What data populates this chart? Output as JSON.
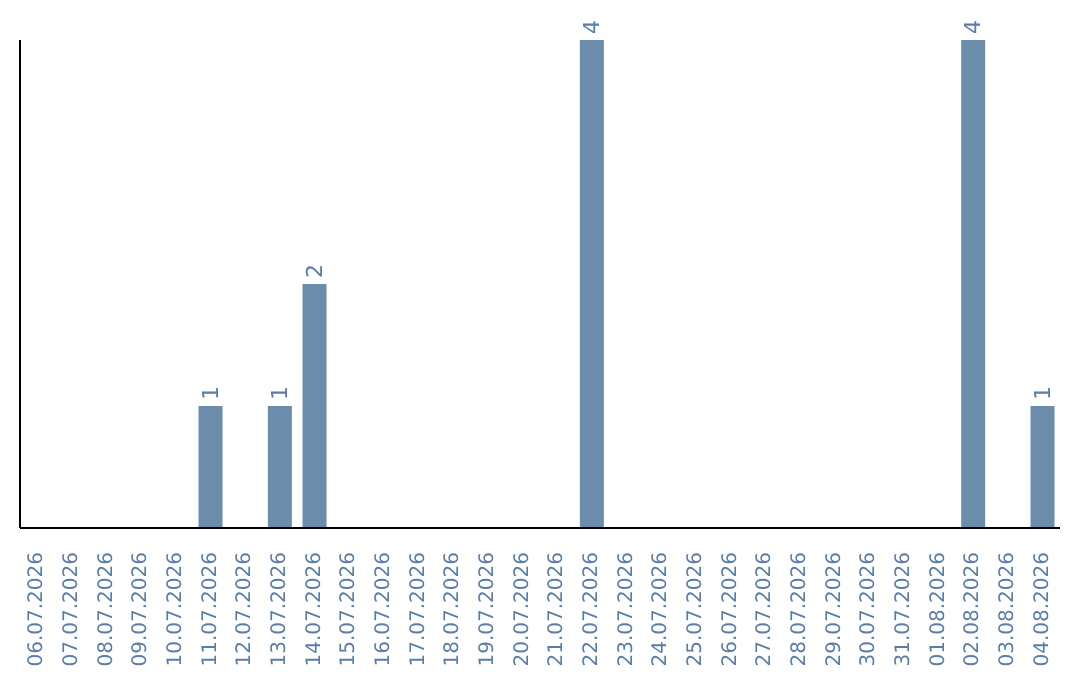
{
  "chart_data": {
    "type": "bar",
    "categories": [
      "06.07.2026",
      "07.07.2026",
      "08.07.2026",
      "09.07.2026",
      "10.07.2026",
      "11.07.2026",
      "12.07.2026",
      "13.07.2026",
      "14.07.2026",
      "15.07.2026",
      "16.07.2026",
      "17.07.2026",
      "18.07.2026",
      "19.07.2026",
      "20.07.2026",
      "21.07.2026",
      "22.07.2026",
      "23.07.2026",
      "24.07.2026",
      "25.07.2026",
      "26.07.2026",
      "27.07.2026",
      "28.07.2026",
      "29.07.2026",
      "30.07.2026",
      "31.07.2026",
      "01.08.2026",
      "02.08.2026",
      "03.08.2026",
      "04.08.2026"
    ],
    "values": [
      0,
      0,
      0,
      0,
      0,
      1,
      0,
      1,
      2,
      0,
      0,
      0,
      0,
      0,
      0,
      0,
      4,
      0,
      0,
      0,
      0,
      0,
      0,
      0,
      0,
      0,
      0,
      4,
      0,
      1
    ],
    "value_labels": [
      null,
      null,
      null,
      null,
      null,
      "1",
      null,
      "1",
      "2",
      null,
      null,
      null,
      null,
      null,
      null,
      null,
      "4",
      null,
      null,
      null,
      null,
      null,
      null,
      null,
      null,
      null,
      null,
      "4",
      null,
      "1"
    ],
    "color": "#6b8cab",
    "grid": false,
    "legend": false
  }
}
